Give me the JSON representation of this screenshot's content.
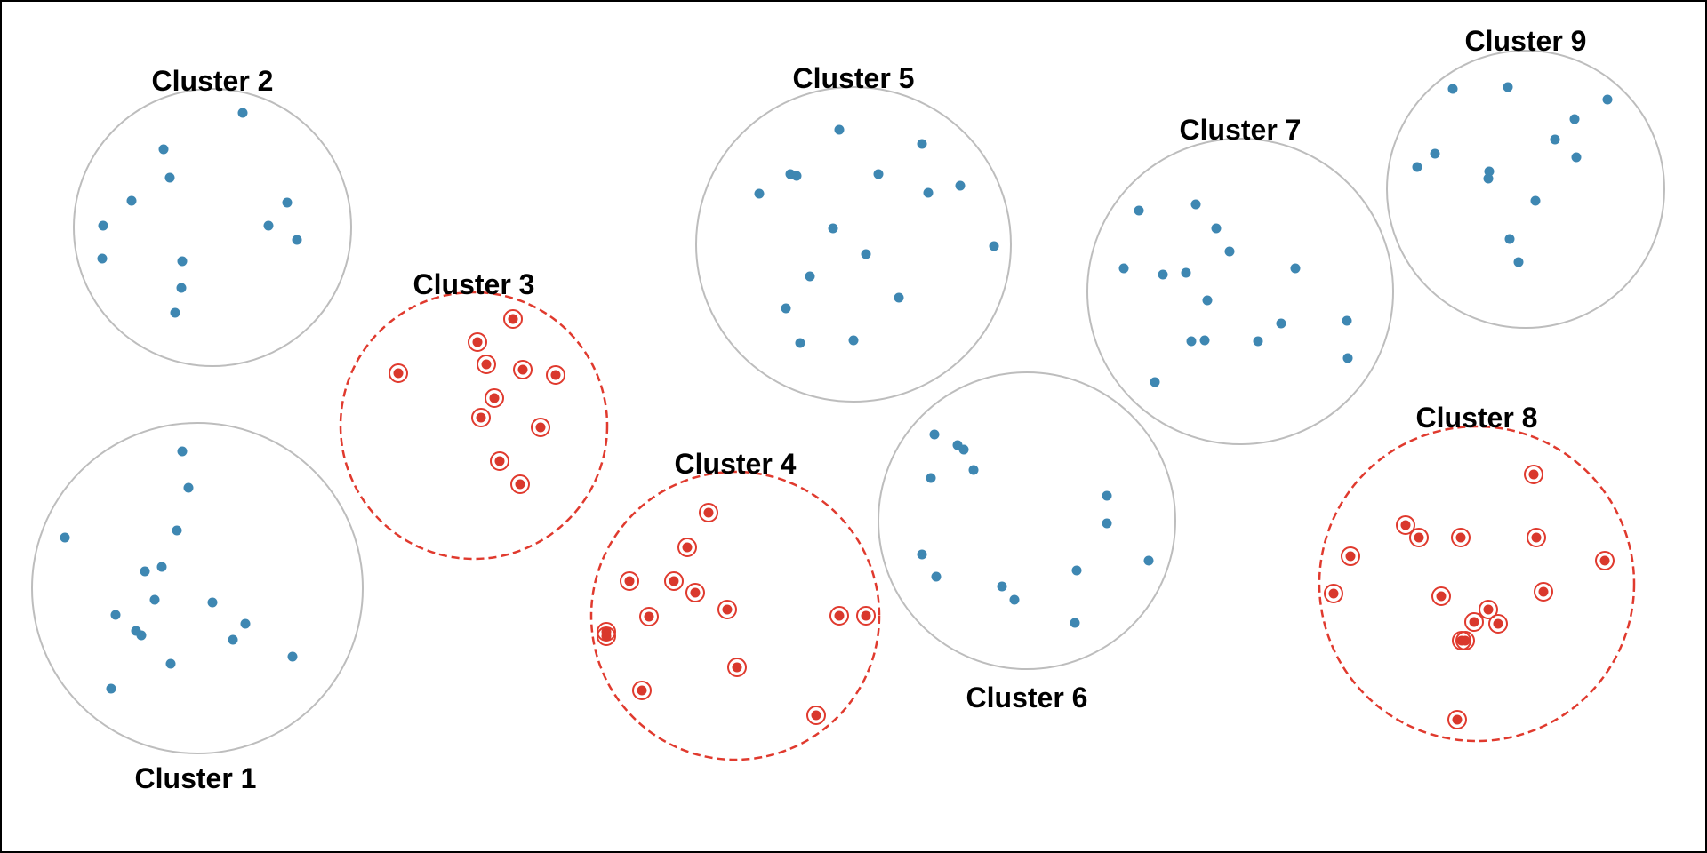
{
  "colors": {
    "point": "#3e87b2",
    "selected_point": "#d9382c",
    "selected_ring": "#e03a2e",
    "unselected_circle": "#bdbdbd"
  },
  "clusters": [
    {
      "id": 1,
      "label": "Cluster 1",
      "selected": false,
      "points": 16
    },
    {
      "id": 2,
      "label": "Cluster 2",
      "selected": false,
      "points": 12
    },
    {
      "id": 3,
      "label": "Cluster 3",
      "selected": true,
      "points": 12
    },
    {
      "id": 4,
      "label": "Cluster 4",
      "selected": true,
      "points": 15
    },
    {
      "id": 5,
      "label": "Cluster 5",
      "selected": false,
      "points": 18
    },
    {
      "id": 6,
      "label": "Cluster 6",
      "selected": false,
      "points": 14
    },
    {
      "id": 7,
      "label": "Cluster 7",
      "selected": false,
      "points": 17
    },
    {
      "id": 8,
      "label": "Cluster 8",
      "selected": true,
      "points": 17
    },
    {
      "id": 9,
      "label": "Cluster 9",
      "selected": false,
      "points": 13
    }
  ]
}
